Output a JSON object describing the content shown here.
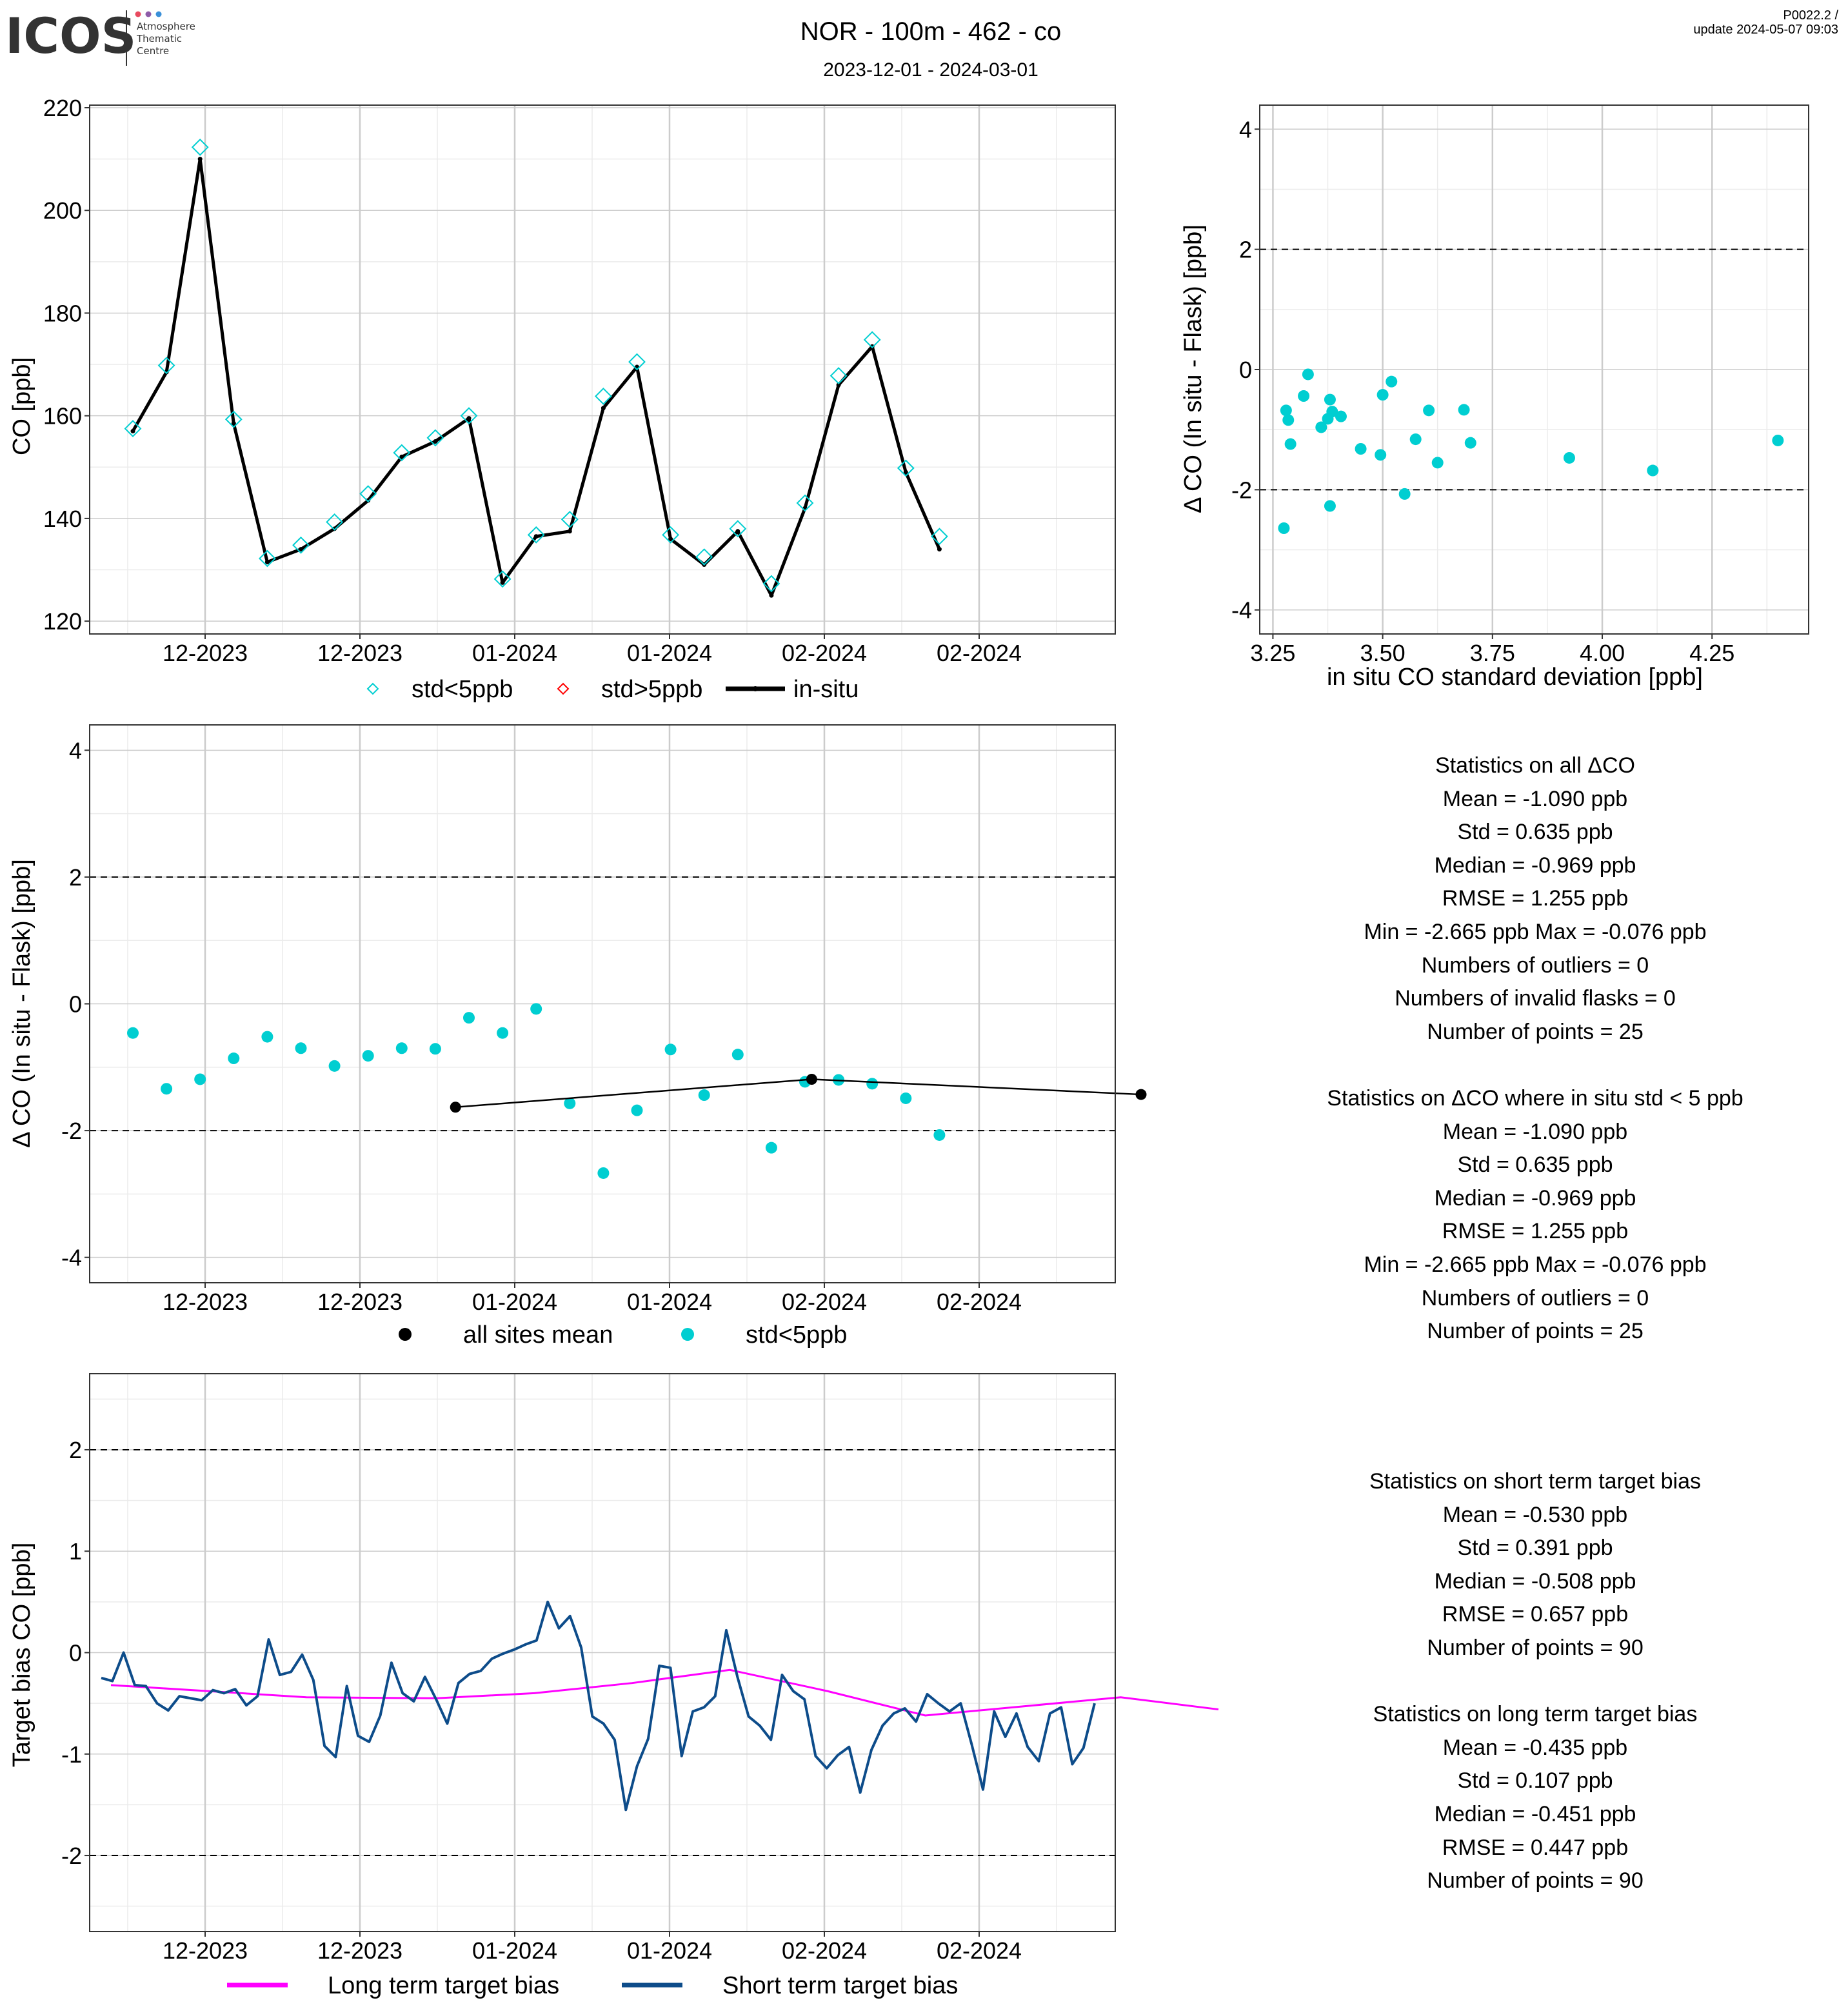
{
  "header": {
    "logo_text": "ICOS",
    "logo_sub": [
      "Atmosphere",
      "Thematic",
      "Centre"
    ],
    "title": "NOR - 100m - 462 - co",
    "subtitle": "2023-12-01 - 2024-03-01",
    "version": "P0022.2 /",
    "update": "update  2024-05-07 09:03"
  },
  "colors": {
    "cyan": "#00CED1",
    "red": "#FF0000",
    "black": "#000000",
    "magenta": "#FF00FF",
    "navy": "#0D4C8A",
    "grid_major": "#CCCCCC",
    "grid_minor": "#EBEBEB"
  },
  "x_date_ticks": [
    "12-2023",
    "12-2023",
    "01-2024",
    "01-2024",
    "02-2024",
    "02-2024"
  ],
  "chart_data": [
    {
      "id": "co_timeseries",
      "type": "line",
      "ylabel": "CO [ppb]",
      "ylim": [
        117,
        220
      ],
      "yticks": [
        120,
        140,
        160,
        180,
        200,
        220
      ],
      "xticks": [
        "12-2023",
        "12-2023",
        "01-2024",
        "01-2024",
        "02-2024",
        "02-2024"
      ],
      "legend": [
        "std<5ppb",
        "std>5ppb",
        "in-situ"
      ],
      "legend_position": "bottom",
      "flask_std_lt5": [
        157.5,
        169.8,
        212.3,
        159.3,
        132.2,
        134.8,
        139.3,
        144.8,
        152.8,
        155.7,
        160.0,
        128.2,
        136.8,
        139.8,
        163.8,
        170.5,
        136.8,
        132.5,
        138.0,
        127.3,
        143.0,
        167.8,
        174.8,
        149.8,
        136.5
      ],
      "in_situ": [
        157.0,
        168.5,
        210.0,
        158.5,
        131.5,
        134.0,
        138.0,
        143.5,
        152.0,
        155.0,
        159.5,
        127.5,
        136.5,
        137.5,
        161.5,
        169.5,
        136.0,
        131.0,
        137.5,
        125.0,
        142.0,
        166.0,
        173.5,
        149.0,
        134.0
      ]
    },
    {
      "id": "delta_vs_std",
      "type": "scatter",
      "xlabel": "in situ CO standard deviation [ppb]",
      "ylabel": "Δ CO (In situ - Flask) [ppb]",
      "xlim": [
        3.22,
        4.47
      ],
      "ylim": [
        -4.4,
        4.4
      ],
      "xticks": [
        "3.25",
        "3.50",
        "3.75",
        "4.00",
        "4.25"
      ],
      "yticks": [
        "-4",
        "-2",
        "0",
        "2",
        "4"
      ],
      "dashed_lines": [
        -2,
        2
      ],
      "points": [
        [
          3.275,
          -2.64
        ],
        [
          3.28,
          -0.68
        ],
        [
          3.285,
          -0.84
        ],
        [
          3.29,
          -1.24
        ],
        [
          3.32,
          -0.44
        ],
        [
          3.33,
          -0.08
        ],
        [
          3.36,
          -0.96
        ],
        [
          3.375,
          -0.82
        ],
        [
          3.38,
          -0.5
        ],
        [
          3.38,
          -2.27
        ],
        [
          3.385,
          -0.7
        ],
        [
          3.405,
          -0.78
        ],
        [
          3.45,
          -1.32
        ],
        [
          3.495,
          -1.42
        ],
        [
          3.5,
          -0.42
        ],
        [
          3.52,
          -0.2
        ],
        [
          3.55,
          -2.07
        ],
        [
          3.575,
          -1.16
        ],
        [
          3.605,
          -0.68
        ],
        [
          3.625,
          -1.55
        ],
        [
          3.685,
          -0.67
        ],
        [
          3.7,
          -1.22
        ],
        [
          3.925,
          -1.47
        ],
        [
          4.115,
          -1.68
        ],
        [
          4.4,
          -1.18
        ]
      ]
    },
    {
      "id": "delta_timeseries",
      "type": "scatter",
      "ylabel": "Δ CO (In situ - Flask) [ppb]",
      "ylim": [
        -4.4,
        4.4
      ],
      "yticks": [
        "-4",
        "-2",
        "0",
        "2",
        "4"
      ],
      "xticks": [
        "12-2023",
        "12-2023",
        "01-2024",
        "01-2024",
        "02-2024",
        "02-2024"
      ],
      "dashed_lines": [
        -2,
        2
      ],
      "legend": [
        "all sites mean",
        "std<5ppb"
      ],
      "legend_position": "bottom",
      "std_lt5": [
        -0.46,
        -1.34,
        -1.19,
        -0.86,
        -0.52,
        -0.7,
        -0.98,
        -0.82,
        -0.7,
        -0.71,
        -0.22,
        -0.46,
        -0.08,
        -1.57,
        -2.67,
        -1.68,
        -0.72,
        -1.44,
        -0.8,
        -2.27,
        -1.23,
        -1.2,
        -1.26,
        -1.49,
        -2.07
      ],
      "all_sites_mean": [
        [
          9.6,
          -1.63
        ],
        [
          20.2,
          -1.19
        ],
        [
          30.0,
          -1.43
        ]
      ]
    },
    {
      "id": "target_bias",
      "type": "line",
      "ylabel": "Target bias CO [ppb]",
      "ylim": [
        -2.75,
        2.75
      ],
      "yticks": [
        "-2",
        "-1",
        "0",
        "1",
        "2"
      ],
      "xticks": [
        "12-2023",
        "12-2023",
        "01-2024",
        "01-2024",
        "02-2024",
        "02-2024"
      ],
      "dashed_lines": [
        -2,
        2
      ],
      "legend": [
        "Long term target bias",
        "Short term target bias"
      ],
      "legend_position": "bottom",
      "series": [
        {
          "name": "Long term target bias",
          "color": "#FF00FF",
          "points": [
            [
              0,
              -0.32
            ],
            [
              3,
              -0.38
            ],
            [
              6,
              -0.44
            ],
            [
              10,
              -0.45
            ],
            [
              13,
              -0.4
            ],
            [
              16,
              -0.3
            ],
            [
              19,
              -0.17
            ],
            [
              22,
              -0.38
            ],
            [
              25,
              -0.62
            ],
            [
              28,
              -0.53
            ],
            [
              31,
              -0.44
            ],
            [
              34,
              -0.56
            ]
          ]
        },
        {
          "name": "Short term target bias",
          "color": "#0D4C8A",
          "values": [
            -0.25,
            -0.28,
            0.0,
            -0.32,
            -0.33,
            -0.5,
            -0.57,
            -0.43,
            -0.45,
            -0.47,
            -0.37,
            -0.4,
            -0.36,
            -0.52,
            -0.43,
            0.13,
            -0.22,
            -0.19,
            -0.02,
            -0.27,
            -0.92,
            -1.03,
            -0.33,
            -0.82,
            -0.88,
            -0.62,
            -0.1,
            -0.4,
            -0.48,
            -0.24,
            -0.46,
            -0.7,
            -0.3,
            -0.21,
            -0.18,
            -0.06,
            -0.01,
            0.03,
            0.08,
            0.12,
            0.5,
            0.24,
            0.36,
            0.05,
            -0.63,
            -0.7,
            -0.86,
            -1.55,
            -1.12,
            -0.85,
            -0.13,
            -0.15,
            -1.02,
            -0.58,
            -0.54,
            -0.43,
            0.22,
            -0.24,
            -0.63,
            -0.72,
            -0.86,
            -0.22,
            -0.38,
            -0.46,
            -1.02,
            -1.14,
            -1.01,
            -0.93,
            -1.38,
            -0.96,
            -0.72,
            -0.6,
            -0.55,
            -0.68,
            -0.41,
            -0.5,
            -0.58,
            -0.5,
            -0.91,
            -1.35,
            -0.58,
            -0.83,
            -0.6,
            -0.93,
            -1.07,
            -0.6,
            -0.54,
            -1.1,
            -0.94,
            -0.5
          ]
        }
      ]
    }
  ],
  "stats": [
    "Statistics on all ΔCO",
    "Mean =  -1.090 ppb",
    "Std =  0.635 ppb",
    "Median =  -0.969 ppb",
    "RMSE =  1.255 ppb",
    "Min =  -2.665 ppb Max =  -0.076 ppb",
    "Numbers of outliers =  0",
    "Numbers of invalid flasks =  0",
    "Number of points =  25",
    "",
    "Statistics on ΔCO where in situ std < 5 ppb",
    "Mean =  -1.090 ppb",
    "Std =  0.635 ppb",
    "Median =  -0.969 ppb",
    "RMSE =  1.255 ppb",
    "Min =  -2.665 ppb Max =  -0.076 ppb",
    "Numbers of outliers =  0",
    "Number of points =  25"
  ],
  "stats_bias": [
    "Statistics on short term target bias",
    "Mean =  -0.530 ppb",
    "Std =  0.391 ppb",
    "Median =  -0.508 ppb",
    "RMSE =  0.657 ppb",
    "Number of points =  90",
    "",
    "Statistics on long term target bias",
    "Mean =  -0.435 ppb",
    "Std =  0.107 ppb",
    "Median =  -0.451 ppb",
    "RMSE =  0.447 ppb",
    "Number of points =  90"
  ]
}
